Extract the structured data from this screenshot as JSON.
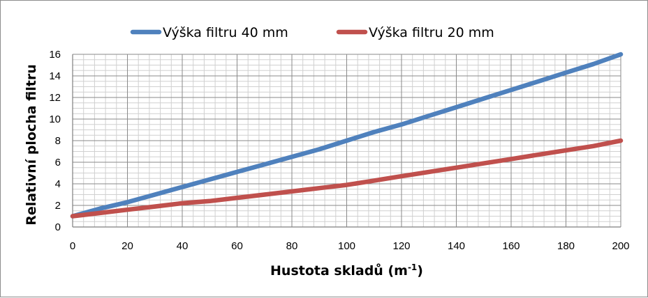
{
  "chart_data": {
    "type": "line",
    "title": "",
    "xlabel": "Hustota skladů (m",
    "xlabel_sup": "-1",
    "xlabel_close": ")",
    "ylabel": "Relativní plocha filtru",
    "xlim": [
      0,
      200
    ],
    "ylim": [
      0,
      16
    ],
    "xticks": [
      0,
      20,
      40,
      60,
      80,
      100,
      120,
      140,
      160,
      180,
      200
    ],
    "yticks": [
      0,
      2,
      4,
      6,
      8,
      10,
      12,
      14,
      16
    ],
    "grid": true,
    "minor_grid": true,
    "legend_position": "top",
    "x": [
      0,
      10,
      20,
      30,
      40,
      50,
      60,
      70,
      80,
      90,
      100,
      110,
      120,
      130,
      140,
      150,
      160,
      170,
      180,
      190,
      200
    ],
    "series": [
      {
        "name": "Výška filtru 40 mm",
        "color": "#4f81bd",
        "values": [
          1.0,
          1.7,
          2.3,
          3.0,
          3.7,
          4.4,
          5.1,
          5.8,
          6.5,
          7.2,
          8.0,
          8.8,
          9.5,
          10.3,
          11.1,
          11.9,
          12.7,
          13.5,
          14.3,
          15.1,
          16.0
        ]
      },
      {
        "name": "Výška filtru 20 mm",
        "color": "#c0504d",
        "values": [
          1.0,
          1.3,
          1.6,
          1.9,
          2.2,
          2.4,
          2.7,
          3.0,
          3.3,
          3.6,
          3.9,
          4.3,
          4.7,
          5.1,
          5.5,
          5.9,
          6.3,
          6.7,
          7.1,
          7.5,
          8.0
        ]
      }
    ]
  }
}
